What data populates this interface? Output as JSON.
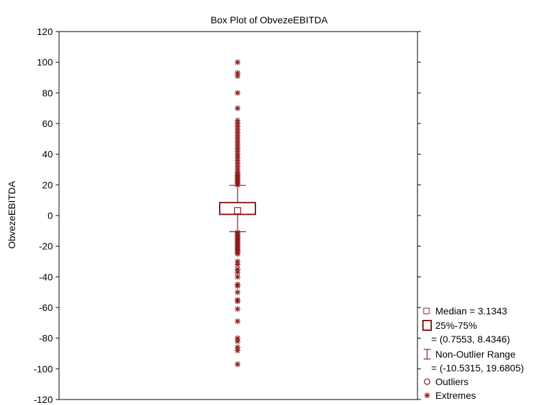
{
  "chart_data": {
    "type": "box",
    "title": "Box Plot of ObvezeEBITDA",
    "xlabel": "",
    "ylabel": "ObvezeEBITDA",
    "ylim": [
      -120,
      120
    ],
    "yticks": [
      120,
      100,
      80,
      60,
      40,
      20,
      0,
      -20,
      -40,
      -60,
      -80,
      -100,
      -120
    ],
    "grid": false,
    "legend_position": "bottom-right",
    "color": "#8b1a1a",
    "series": [
      {
        "median": 3.1343,
        "q1": 0.7553,
        "q3": 8.4346,
        "whisker_low": -10.5315,
        "whisker_high": 19.6805,
        "extremes": [
          100,
          93,
          91,
          80,
          70,
          62,
          60,
          58,
          56,
          54,
          52,
          50,
          48,
          46,
          44,
          42,
          40,
          38,
          36,
          34,
          32,
          30,
          28,
          27,
          26,
          25,
          24,
          23,
          22,
          21,
          20,
          -11,
          -12,
          -13,
          -14,
          -15,
          -16,
          -17,
          -18,
          -19,
          -20,
          -21,
          -22,
          -23,
          -24,
          -25,
          -30,
          -32,
          -35,
          -37,
          -40,
          -45,
          -46,
          -50,
          -55,
          -56,
          -61,
          -69,
          -80,
          -82,
          -86,
          -88,
          -97
        ]
      }
    ],
    "legend": {
      "median": "Median = 3.1343",
      "box": "25%-75%",
      "box_range": "= (0.7553, 8.4346)",
      "whisker": "Non-Outlier Range",
      "whisker_range": "= (-10.5315, 19.6805)",
      "outliers": "Outliers",
      "extremes": "Extremes"
    }
  }
}
